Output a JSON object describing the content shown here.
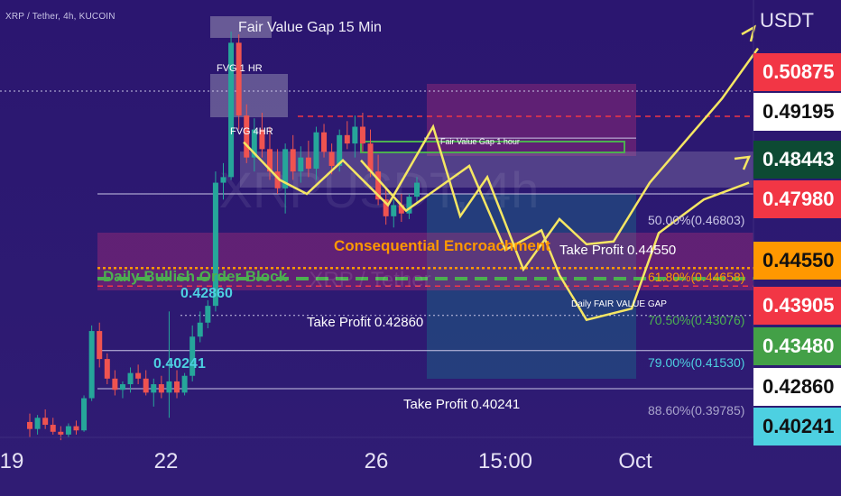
{
  "header": {
    "title": "XRP / Tether, 4h, KUCOIN"
  },
  "axis": {
    "currency": "USDT"
  },
  "watermark": {
    "symbol": "XRPUSDT, 4h",
    "name": "XRP / Tether"
  },
  "x_ticks": [
    {
      "label": "19"
    },
    {
      "label": "22"
    },
    {
      "label": "26"
    },
    {
      "label": "15:00"
    },
    {
      "label": "Oct"
    }
  ],
  "price_tags": [
    {
      "label": "0.50875",
      "bg": "#f23645",
      "fg": "#ffffff"
    },
    {
      "label": "0.49195",
      "bg": "#ffffff",
      "fg": "#111111"
    },
    {
      "label": "0.48443",
      "bg": "#0d4a33",
      "fg": "#ffffff"
    },
    {
      "label": "0.47980",
      "bg": "#f23645",
      "fg": "#ffffff"
    },
    {
      "label": "0.44550",
      "bg": "#ff9800",
      "fg": "#111111"
    },
    {
      "label": "0.43905",
      "bg": "#f23645",
      "fg": "#ffffff"
    },
    {
      "label": "0.43480",
      "bg": "#43a047",
      "fg": "#ffffff"
    },
    {
      "label": "0.42860",
      "bg": "#ffffff",
      "fg": "#111111"
    },
    {
      "label": "0.40241",
      "bg": "#4dd0e1",
      "fg": "#111111"
    }
  ],
  "annotations": {
    "fvg_15min": "Fair Value Gap 15 Min",
    "fvg_1hr": "FVG 1 HR",
    "fvg_4hr": "FVG 4HR",
    "fvg_1hour": "Fair Value Gap 1 hour",
    "consequential": "Consequential Encroachment",
    "order_block": "Daily Bullish Order Block",
    "daily_fvg": "Daily FAIR VALUE GAP",
    "tp_0445": "Take Profit 0.44550",
    "tp_0428": "Take Profit  0.42860",
    "tp_0402": "Take Profit  0.40241",
    "level_0428": "0.42860",
    "level_0402": "0.40241"
  },
  "fib_levels": [
    {
      "label": "50.00%(0.46803)"
    },
    {
      "label": "61.80%(0.44658)"
    },
    {
      "label": "70.50%(0.43076)"
    },
    {
      "label": "79.00%(0.41530)"
    },
    {
      "label": "88.60%(0.39785)"
    }
  ],
  "colors": {
    "background": "#2b1670",
    "up_candle": "#26a69a",
    "down_candle": "#ef5350",
    "projection": "#f5e663",
    "orange": "#ff9800",
    "green_dash": "#4caf50",
    "red_dash": "#f23645"
  },
  "chart_data": {
    "type": "candlestick",
    "symbol": "XRP / Tether",
    "timeframe": "4h",
    "exchange": "KUCOIN",
    "y_unit": "USDT",
    "ylim": [
      0.385,
      0.53
    ],
    "x_tick_labels": [
      "19",
      "22",
      "26",
      "15:00",
      "Oct"
    ],
    "candles": [
      {
        "o": 0.3905,
        "h": 0.3935,
        "l": 0.385,
        "c": 0.388
      },
      {
        "o": 0.388,
        "h": 0.393,
        "l": 0.386,
        "c": 0.392
      },
      {
        "o": 0.392,
        "h": 0.395,
        "l": 0.388,
        "c": 0.3895
      },
      {
        "o": 0.3895,
        "h": 0.392,
        "l": 0.386,
        "c": 0.387
      },
      {
        "o": 0.387,
        "h": 0.389,
        "l": 0.384,
        "c": 0.386
      },
      {
        "o": 0.386,
        "h": 0.39,
        "l": 0.385,
        "c": 0.389
      },
      {
        "o": 0.389,
        "h": 0.391,
        "l": 0.386,
        "c": 0.3875
      },
      {
        "o": 0.3875,
        "h": 0.4,
        "l": 0.387,
        "c": 0.399
      },
      {
        "o": 0.399,
        "h": 0.425,
        "l": 0.398,
        "c": 0.423
      },
      {
        "o": 0.423,
        "h": 0.426,
        "l": 0.41,
        "c": 0.413
      },
      {
        "o": 0.413,
        "h": 0.415,
        "l": 0.404,
        "c": 0.406
      },
      {
        "o": 0.406,
        "h": 0.409,
        "l": 0.4,
        "c": 0.402
      },
      {
        "o": 0.402,
        "h": 0.405,
        "l": 0.399,
        "c": 0.404
      },
      {
        "o": 0.404,
        "h": 0.41,
        "l": 0.401,
        "c": 0.408
      },
      {
        "o": 0.408,
        "h": 0.411,
        "l": 0.404,
        "c": 0.406
      },
      {
        "o": 0.406,
        "h": 0.409,
        "l": 0.4,
        "c": 0.401
      },
      {
        "o": 0.401,
        "h": 0.406,
        "l": 0.396,
        "c": 0.404
      },
      {
        "o": 0.404,
        "h": 0.407,
        "l": 0.399,
        "c": 0.401
      },
      {
        "o": 0.401,
        "h": 0.43,
        "l": 0.392,
        "c": 0.405
      },
      {
        "o": 0.405,
        "h": 0.409,
        "l": 0.399,
        "c": 0.401
      },
      {
        "o": 0.401,
        "h": 0.408,
        "l": 0.4,
        "c": 0.407
      },
      {
        "o": 0.407,
        "h": 0.425,
        "l": 0.405,
        "c": 0.421
      },
      {
        "o": 0.421,
        "h": 0.43,
        "l": 0.419,
        "c": 0.426
      },
      {
        "o": 0.426,
        "h": 0.434,
        "l": 0.424,
        "c": 0.432
      },
      {
        "o": 0.432,
        "h": 0.48,
        "l": 0.43,
        "c": 0.476
      },
      {
        "o": 0.476,
        "h": 0.483,
        "l": 0.47,
        "c": 0.478
      },
      {
        "o": 0.478,
        "h": 0.53,
        "l": 0.477,
        "c": 0.526
      },
      {
        "o": 0.526,
        "h": 0.529,
        "l": 0.495,
        "c": 0.5
      },
      {
        "o": 0.5,
        "h": 0.504,
        "l": 0.483,
        "c": 0.485
      },
      {
        "o": 0.485,
        "h": 0.499,
        "l": 0.48,
        "c": 0.495
      },
      {
        "o": 0.495,
        "h": 0.501,
        "l": 0.485,
        "c": 0.488
      },
      {
        "o": 0.488,
        "h": 0.496,
        "l": 0.477,
        "c": 0.48
      },
      {
        "o": 0.48,
        "h": 0.488,
        "l": 0.472,
        "c": 0.474
      },
      {
        "o": 0.474,
        "h": 0.49,
        "l": 0.465,
        "c": 0.488
      },
      {
        "o": 0.488,
        "h": 0.493,
        "l": 0.477,
        "c": 0.48
      },
      {
        "o": 0.48,
        "h": 0.489,
        "l": 0.476,
        "c": 0.485
      },
      {
        "o": 0.485,
        "h": 0.491,
        "l": 0.478,
        "c": 0.481
      },
      {
        "o": 0.481,
        "h": 0.496,
        "l": 0.477,
        "c": 0.494
      },
      {
        "o": 0.494,
        "h": 0.497,
        "l": 0.485,
        "c": 0.487
      },
      {
        "o": 0.487,
        "h": 0.49,
        "l": 0.479,
        "c": 0.482
      },
      {
        "o": 0.482,
        "h": 0.495,
        "l": 0.48,
        "c": 0.493
      },
      {
        "o": 0.493,
        "h": 0.498,
        "l": 0.488,
        "c": 0.49
      },
      {
        "o": 0.49,
        "h": 0.5,
        "l": 0.485,
        "c": 0.496
      },
      {
        "o": 0.496,
        "h": 0.501,
        "l": 0.487,
        "c": 0.49
      },
      {
        "o": 0.49,
        "h": 0.495,
        "l": 0.478,
        "c": 0.48
      },
      {
        "o": 0.48,
        "h": 0.486,
        "l": 0.468,
        "c": 0.47
      },
      {
        "o": 0.47,
        "h": 0.474,
        "l": 0.461,
        "c": 0.464
      },
      {
        "o": 0.464,
        "h": 0.47,
        "l": 0.46,
        "c": 0.468
      },
      {
        "o": 0.468,
        "h": 0.472,
        "l": 0.462,
        "c": 0.465
      },
      {
        "o": 0.465,
        "h": 0.472,
        "l": 0.463,
        "c": 0.471
      },
      {
        "o": 0.471,
        "h": 0.478,
        "l": 0.469,
        "c": 0.476
      }
    ],
    "horizontal_levels": [
      {
        "price": 0.50875,
        "style": "dotted"
      },
      {
        "price": 0.4997,
        "style": "dashed-red"
      },
      {
        "price": 0.49195,
        "style": "solid"
      },
      {
        "price": 0.472,
        "style": "solid"
      },
      {
        "price": 0.4455,
        "style": "dotted-orange"
      },
      {
        "price": 0.4417,
        "style": "dashed-green"
      },
      {
        "price": 0.43905,
        "style": "dashed-red"
      },
      {
        "price": 0.4286,
        "style": "dotted"
      },
      {
        "price": 0.416,
        "style": "solid"
      },
      {
        "price": 0.40241,
        "style": "solid"
      }
    ],
    "projection_paths": [
      {
        "name": "path-a",
        "points": [
          [
            270,
            0.4905
          ],
          [
            310,
            0.477
          ],
          [
            340,
            0.472
          ],
          [
            380,
            0.484
          ],
          [
            430,
            0.468
          ],
          [
            480,
            0.496
          ],
          [
            510,
            0.464
          ],
          [
            540,
            0.478
          ],
          [
            580,
            0.445
          ],
          [
            620,
            0.463
          ],
          [
            650,
            0.454
          ],
          [
            680,
            0.455
          ],
          [
            720,
            0.476
          ],
          [
            800,
            0.506
          ],
          [
            840,
            0.524
          ]
        ]
      },
      {
        "name": "path-b",
        "points": [
          [
            400,
            0.484
          ],
          [
            450,
            0.466
          ],
          [
            520,
            0.482
          ],
          [
            560,
            0.452
          ],
          [
            600,
            0.459
          ],
          [
            620,
            0.443
          ],
          [
            650,
            0.427
          ],
          [
            700,
            0.431
          ],
          [
            730,
            0.458
          ],
          [
            780,
            0.47
          ],
          [
            830,
            0.476
          ]
        ]
      }
    ]
  }
}
